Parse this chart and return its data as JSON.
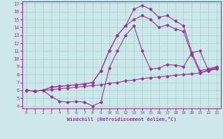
{
  "xlabel": "Windchill (Refroidissement éolien,°C)",
  "bg_color": "#cce8e8",
  "grid_color": "#aacccc",
  "line_color": "#993399",
  "xlim": [
    -0.5,
    23.5
  ],
  "ylim": [
    3.7,
    17.3
  ],
  "xticks": [
    0,
    1,
    2,
    3,
    4,
    5,
    6,
    7,
    8,
    9,
    10,
    11,
    12,
    13,
    14,
    15,
    16,
    17,
    18,
    19,
    20,
    21,
    22,
    23
  ],
  "yticks": [
    4,
    5,
    6,
    7,
    8,
    9,
    10,
    11,
    12,
    13,
    14,
    15,
    16,
    17
  ],
  "line1_x": [
    0,
    1,
    2,
    3,
    4,
    5,
    6,
    7,
    8,
    9,
    10,
    11,
    12,
    13,
    14,
    15,
    16,
    17,
    18,
    19,
    20,
    21,
    22,
    23
  ],
  "line1_y": [
    6.0,
    5.9,
    6.0,
    6.1,
    6.2,
    6.3,
    6.4,
    6.5,
    6.6,
    6.7,
    6.9,
    7.0,
    7.2,
    7.3,
    7.5,
    7.6,
    7.7,
    7.8,
    7.9,
    8.0,
    8.1,
    8.2,
    8.5,
    8.7
  ],
  "line2_x": [
    0,
    1,
    2,
    3,
    4,
    5,
    6,
    7,
    8,
    9,
    10,
    11,
    12,
    13,
    14,
    15,
    16,
    17,
    18,
    19,
    20,
    21,
    22,
    23
  ],
  "line2_y": [
    6.0,
    5.9,
    6.0,
    5.2,
    4.6,
    4.5,
    4.6,
    4.5,
    4.0,
    4.5,
    8.8,
    11.0,
    13.0,
    14.2,
    11.0,
    8.7,
    8.8,
    9.3,
    9.2,
    9.0,
    10.8,
    11.0,
    8.5,
    8.8
  ],
  "line3_x": [
    0,
    1,
    2,
    3,
    4,
    5,
    6,
    7,
    8,
    9,
    10,
    11,
    12,
    13,
    14,
    15,
    16,
    17,
    18,
    19,
    20,
    21,
    22,
    23
  ],
  "line3_y": [
    6.0,
    5.9,
    6.0,
    6.4,
    6.5,
    6.6,
    6.7,
    6.8,
    7.0,
    8.5,
    11.0,
    13.0,
    14.2,
    16.3,
    16.8,
    16.3,
    15.3,
    15.5,
    14.8,
    14.2,
    10.8,
    8.5,
    8.7,
    9.0
  ],
  "line4_x": [
    0,
    1,
    2,
    3,
    4,
    5,
    6,
    7,
    8,
    9,
    10,
    11,
    12,
    13,
    14,
    15,
    16,
    17,
    18,
    19,
    20,
    21,
    22,
    23
  ],
  "line4_y": [
    6.0,
    5.9,
    6.0,
    6.4,
    6.5,
    6.6,
    6.7,
    6.8,
    7.0,
    8.5,
    11.0,
    13.0,
    14.2,
    15.0,
    15.5,
    15.0,
    14.0,
    14.3,
    13.8,
    13.5,
    10.5,
    8.2,
    8.6,
    8.9
  ]
}
